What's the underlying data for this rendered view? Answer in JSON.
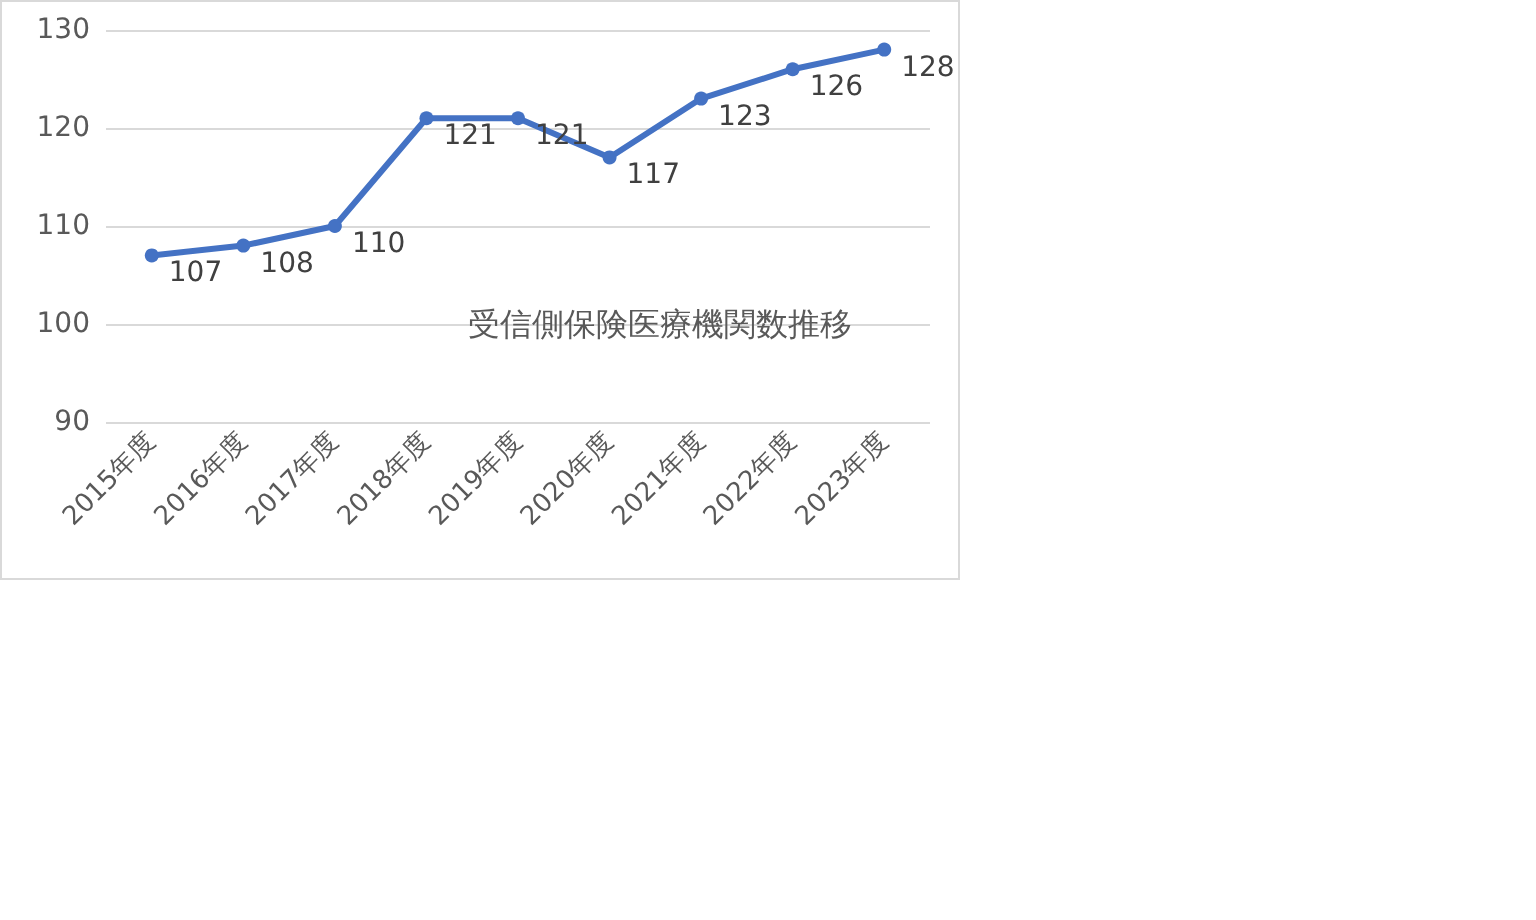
{
  "chart_data": {
    "type": "line",
    "title": "受信側保険医療機関数推移",
    "categories": [
      "2015年度",
      "2016年度",
      "2017年度",
      "2018年度",
      "2019年度",
      "2020年度",
      "2021年度",
      "2022年度",
      "2023年度"
    ],
    "series": [
      {
        "color": "#4472c4",
        "values": [
          107,
          108,
          110,
          121,
          121,
          117,
          123,
          126,
          128
        ]
      }
    ],
    "ylim": [
      90,
      130
    ],
    "yticks": [
      90,
      100,
      110,
      120,
      130
    ],
    "grid": "y",
    "marker": "circle",
    "line_style": "solid",
    "data_labels": true
  }
}
